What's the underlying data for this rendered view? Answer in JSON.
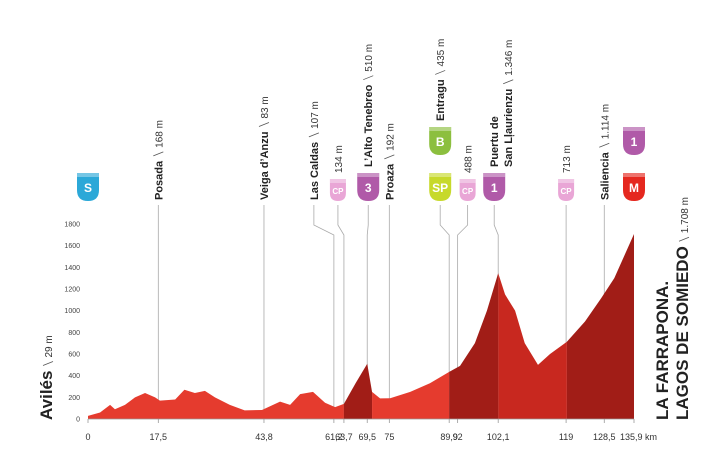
{
  "chart_data": {
    "type": "area",
    "ylim": [
      0,
      1800
    ],
    "yticks": [
      0,
      200,
      400,
      600,
      800,
      1000,
      1200,
      1400,
      1600,
      1800
    ],
    "xlim": [
      0,
      135.9
    ],
    "xticks": [
      0,
      {
        "value": 17.5,
        "label": "17,5"
      },
      {
        "value": 43.8,
        "label": "43,8"
      },
      {
        "value": 61.2,
        "label": "61,2"
      },
      {
        "value": 63.7,
        "label": "63,7"
      },
      {
        "value": 69.5,
        "label": "69,5"
      },
      75,
      {
        "value": 89.9,
        "label": "89,9"
      },
      92,
      {
        "value": 102.1,
        "label": "102,1"
      },
      119,
      {
        "value": 128.5,
        "label": "128,5"
      },
      {
        "value": 135.9,
        "label": "135,9 km"
      }
    ],
    "series": [
      {
        "color": "#e53b2e",
        "x": [
          0,
          3,
          5.5,
          6.7,
          9.2,
          11.7,
          14.2,
          16.7,
          17.9,
          21.7,
          24,
          26.6,
          29.1,
          31.6,
          35.3,
          39,
          43.3,
          47.8,
          50.3,
          52.8,
          56,
          59,
          61.5,
          63.7
        ],
        "values": [
          29,
          60,
          130,
          90,
          130,
          200,
          240,
          200,
          170,
          180,
          270,
          240,
          260,
          200,
          130,
          80,
          83,
          160,
          130,
          230,
          250,
          150,
          110,
          140
        ]
      },
      {
        "color": "#a11d17",
        "x": [
          63.7,
          66.6,
          69.5,
          70.7
        ],
        "values": [
          140,
          330,
          510,
          250
        ]
      },
      {
        "color": "#e53b2e",
        "x": [
          70.7,
          72.7,
          75.2,
          80.2,
          85.1,
          89.9
        ],
        "values": [
          250,
          190,
          192,
          250,
          330,
          435
        ]
      },
      {
        "color": "#a11d17",
        "x": [
          89.9,
          92.6,
          96.3,
          99.3,
          102.1
        ],
        "values": [
          435,
          490,
          700,
          1000,
          1346
        ]
      },
      {
        "color": "#c8281f",
        "x": [
          102.1,
          103.8,
          106.3,
          108.7,
          112,
          115,
          119.2
        ],
        "values": [
          1346,
          1150,
          1000,
          700,
          500,
          600,
          713
        ]
      },
      {
        "color": "#a11d17",
        "x": [
          119.2,
          123.7,
          127.7,
          131,
          135.9
        ],
        "values": [
          713,
          900,
          1114,
          1300,
          1708
        ]
      }
    ],
    "markers": [
      {
        "name": "Avilés",
        "alt": "29 m",
        "icons": [
          {
            "label": "S",
            "color": "#2ba8d8"
          }
        ]
      },
      {
        "name": "Posada",
        "alt": "168 m",
        "icons": []
      },
      {
        "name": "Veiga d’Anzu",
        "alt": "83 m",
        "icons": []
      },
      {
        "name": "Las Caldas",
        "alt": "107 m",
        "icons": []
      },
      {
        "alt": "134 m",
        "icons": [
          {
            "label": "CP",
            "color": "#e9a6d6"
          }
        ]
      },
      {
        "name": "L’Alto Tenebreo",
        "alt": "510 m",
        "icons": [
          {
            "label": "3",
            "color": "#b05aa8"
          }
        ]
      },
      {
        "name": "Proaza",
        "alt": "192 m",
        "icons": []
      },
      {
        "name": "Entragu",
        "alt": "435 m",
        "icons": [
          {
            "label": "SP",
            "color": "#c7d92b"
          },
          {
            "label": "B",
            "color": "#8cbf3f"
          }
        ]
      },
      {
        "alt": "488 m",
        "icons": [
          {
            "label": "CP",
            "color": "#e9a6d6"
          }
        ]
      },
      {
        "name": [
          "Puertu de",
          "San Lļaurienzu"
        ],
        "alt": "1.346 m",
        "icons": [
          {
            "label": "1",
            "color": "#b05aa8"
          }
        ]
      },
      {
        "alt": "713 m",
        "icons": [
          {
            "label": "CP",
            "color": "#e9a6d6"
          }
        ]
      },
      {
        "name": "Saliencia",
        "alt": "1.114 m",
        "icons": []
      },
      {
        "name": [
          "LA FARRAPONA.",
          "LAGOS DE SOMIEDO"
        ],
        "alt": "1.708 m",
        "icons": [
          {
            "label": "M",
            "color": "#e5281f"
          },
          {
            "label": "1",
            "color": "#b05aa8"
          }
        ]
      }
    ]
  }
}
